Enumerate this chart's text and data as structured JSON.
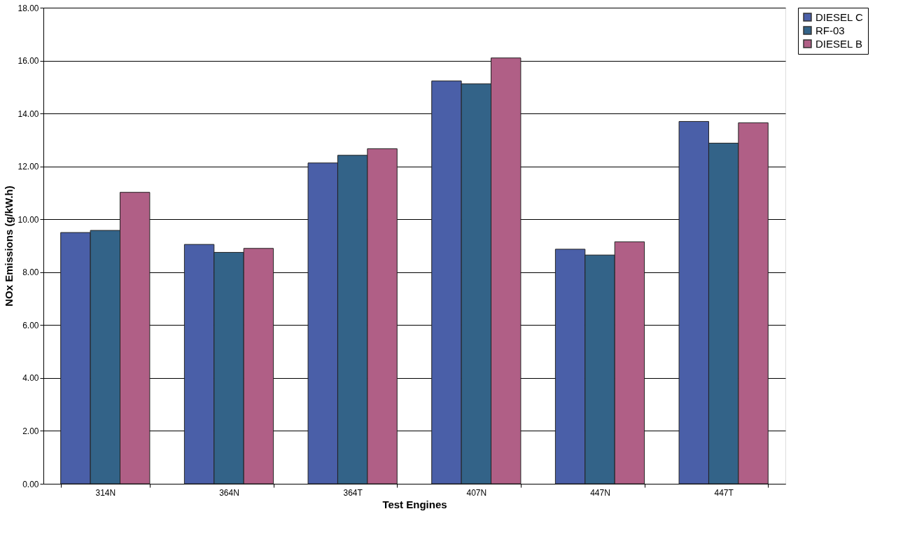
{
  "chart_data": {
    "type": "bar",
    "xlabel": "Test Engines",
    "ylabel": "NOx Emissions (g/kW.h)",
    "categories": [
      "314N",
      "364N",
      "364T",
      "407N",
      "447N",
      "447T"
    ],
    "series": [
      {
        "name": "DIESEL C",
        "color": "#4a5fa8",
        "values": [
          9.5,
          9.05,
          12.13,
          15.23,
          8.87,
          13.7
        ]
      },
      {
        "name": "RF-03",
        "color": "#336388",
        "values": [
          9.58,
          8.75,
          12.42,
          15.12,
          8.65,
          12.88
        ]
      },
      {
        "name": "DIESEL B",
        "color": "#b05f86",
        "values": [
          11.02,
          8.9,
          12.67,
          16.1,
          9.15,
          13.65
        ]
      }
    ],
    "ylim": [
      0,
      18
    ],
    "yticks": [
      {
        "value": 0,
        "label": "0.00"
      },
      {
        "value": 2,
        "label": "2.00"
      },
      {
        "value": 4,
        "label": "4.00"
      },
      {
        "value": 6,
        "label": "6.00"
      },
      {
        "value": 8,
        "label": "8.00"
      },
      {
        "value": 10,
        "label": "10.00"
      },
      {
        "value": 12,
        "label": "12.00"
      },
      {
        "value": 14,
        "label": "14.00"
      },
      {
        "value": 16,
        "label": "16.00"
      },
      {
        "value": 18,
        "label": "18.00"
      }
    ],
    "grid": "y",
    "legend": "right"
  }
}
